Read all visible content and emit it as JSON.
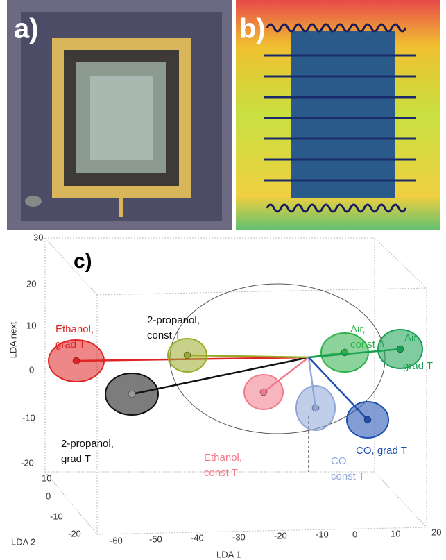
{
  "panels": {
    "a": {
      "label": "a)"
    },
    "b": {
      "label": "b)"
    },
    "c": {
      "label": "c)",
      "axes": {
        "z_label": "LDA next",
        "y_label": "LDA 2",
        "x_label": "LDA 1",
        "z_ticks": [
          30,
          20,
          10,
          0,
          -10,
          -20
        ],
        "y_ticks": [
          10,
          0,
          -10,
          -20
        ],
        "x_ticks": [
          -60,
          -50,
          -40,
          -30,
          -20,
          -10,
          0,
          10,
          20
        ]
      },
      "clusters": [
        {
          "label": [
            "Ethanol,",
            "grad T"
          ],
          "color": "#e02424"
        },
        {
          "label": [
            "2-propanol,",
            "grad T"
          ],
          "color": "#111111"
        },
        {
          "label": [
            "2-propanol,",
            "const T"
          ],
          "color": "#9aab2a"
        },
        {
          "label": [
            "Ethanol,",
            "const T"
          ],
          "color": "#f07a8a"
        },
        {
          "label": [
            "Air,",
            "const T"
          ],
          "color": "#2fb14a"
        },
        {
          "label": [
            "Air,",
            "grad T"
          ],
          "color": "#17a052"
        },
        {
          "label": [
            "CO,",
            "const T"
          ],
          "color": "#8ea6d8"
        },
        {
          "label": [
            "CO, grad T"
          ],
          "color": "#1e4fb0"
        }
      ]
    }
  }
}
